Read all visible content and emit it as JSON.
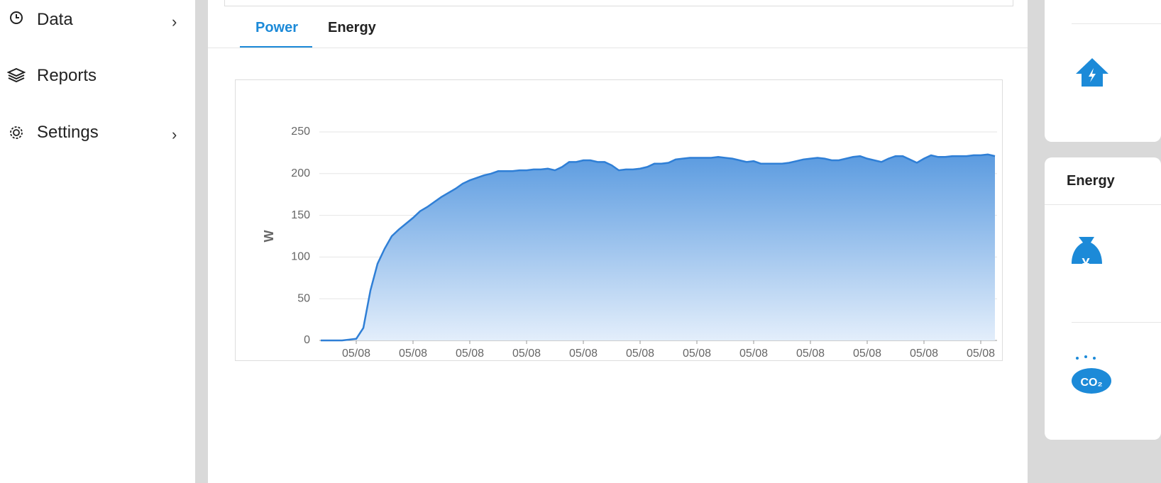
{
  "sidebar": {
    "items": [
      "Data",
      "Reports",
      "Settings"
    ]
  },
  "tabs": [
    "Power",
    "Energy"
  ],
  "right_panel": {
    "card_title": "Energy"
  },
  "chart_data": {
    "type": "area",
    "y_label": "W",
    "color": "#2f7fd6",
    "categories": [
      null,
      null,
      null,
      null,
      null,
      "05/08",
      null,
      null,
      null,
      null,
      null,
      null,
      null,
      "05/08",
      null,
      null,
      null,
      null,
      null,
      null,
      null,
      "05/08",
      null,
      null,
      null,
      null,
      null,
      null,
      null,
      "05/08",
      null,
      null,
      null,
      null,
      null,
      null,
      null,
      "05/08",
      null,
      null,
      null,
      null,
      null,
      null,
      null,
      "05/08",
      null,
      null,
      null,
      null,
      null,
      null,
      null,
      "05/08",
      null,
      null,
      null,
      null,
      null,
      null,
      null,
      "05/08",
      null,
      null,
      null,
      null,
      null,
      null,
      null,
      "05/08",
      null,
      null,
      null,
      null,
      null,
      null,
      null,
      "05/08",
      null,
      null,
      null,
      null,
      null,
      null,
      null,
      "05/08",
      null,
      null,
      null,
      null,
      null,
      null,
      null,
      "05/08",
      null,
      null
    ],
    "values": [
      0,
      0,
      0,
      0,
      1,
      2,
      15,
      60,
      92,
      110,
      125,
      133,
      140,
      147,
      155,
      160,
      166,
      172,
      177,
      182,
      188,
      192,
      195,
      198,
      200,
      203,
      203,
      203,
      204,
      204,
      205,
      205,
      206,
      204,
      208,
      214,
      214,
      216,
      216,
      214,
      214,
      210,
      204,
      205,
      205,
      206,
      208,
      212,
      212,
      213,
      217,
      218,
      219,
      219,
      219,
      219,
      220,
      219,
      218,
      216,
      214,
      215,
      212,
      212,
      212,
      212,
      213,
      215,
      217,
      218,
      219,
      218,
      216,
      216,
      218,
      220,
      221,
      218,
      216,
      214,
      218,
      221,
      221,
      217,
      213,
      218,
      222,
      220,
      220,
      221,
      221,
      221,
      222,
      222,
      223,
      221
    ],
    "ylim": [
      0,
      250
    ],
    "yticks": [
      0,
      50,
      100,
      150,
      200,
      250
    ],
    "grid": true
  }
}
